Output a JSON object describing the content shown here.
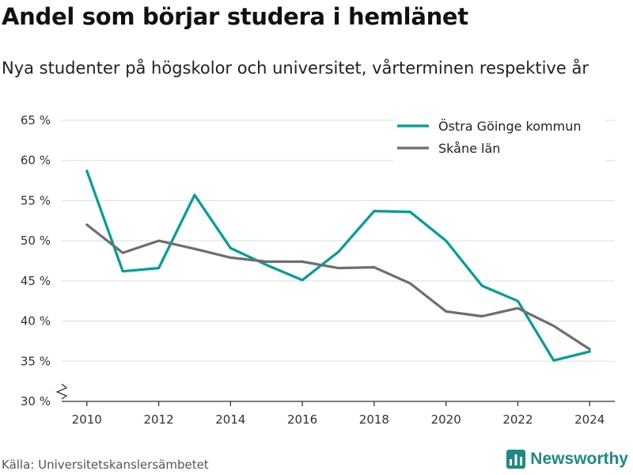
{
  "header": {
    "title": "Andel som börjar studera i hemlänet",
    "subtitle": "Nya studenter på högskolor och universitet, vårterminen respektive år"
  },
  "footer": {
    "source": "Källa: Universitetskanslersämbetet",
    "brand": "Newsworthy"
  },
  "colors": {
    "accent": "#009e96",
    "secondary": "#6d6e71",
    "grid": "#dddddd",
    "brand": "#1d8a84"
  },
  "chart_data": {
    "type": "line",
    "x": [
      2010,
      2011,
      2012,
      2013,
      2014,
      2015,
      2016,
      2017,
      2018,
      2019,
      2020,
      2021,
      2022,
      2023,
      2024
    ],
    "series": [
      {
        "name": "Östra Göinge kommun",
        "color": "#009e96",
        "values": [
          58.7,
          46.2,
          46.6,
          55.7,
          49.1,
          47.0,
          45.1,
          48.6,
          53.7,
          53.6,
          50.0,
          44.4,
          42.5,
          35.1,
          36.2
        ]
      },
      {
        "name": "Skåne län",
        "color": "#6d6e71",
        "values": [
          52.0,
          48.5,
          50.0,
          49.0,
          47.9,
          47.4,
          47.4,
          46.6,
          46.7,
          44.7,
          41.2,
          40.6,
          41.6,
          39.4,
          36.5
        ]
      }
    ],
    "x_ticks": [
      2010,
      2012,
      2014,
      2016,
      2018,
      2020,
      2022,
      2024
    ],
    "y_ticks": [
      30,
      35,
      40,
      45,
      50,
      55,
      60,
      65
    ],
    "y_tick_labels": [
      "30 %",
      "35 %",
      "40 %",
      "45 %",
      "50 %",
      "55 %",
      "60 %",
      "65 %"
    ],
    "xlim": [
      2009.3,
      2024.7
    ],
    "ylim": [
      30,
      65
    ],
    "grid": true,
    "axis_break": true,
    "legend_position": "top-right"
  }
}
